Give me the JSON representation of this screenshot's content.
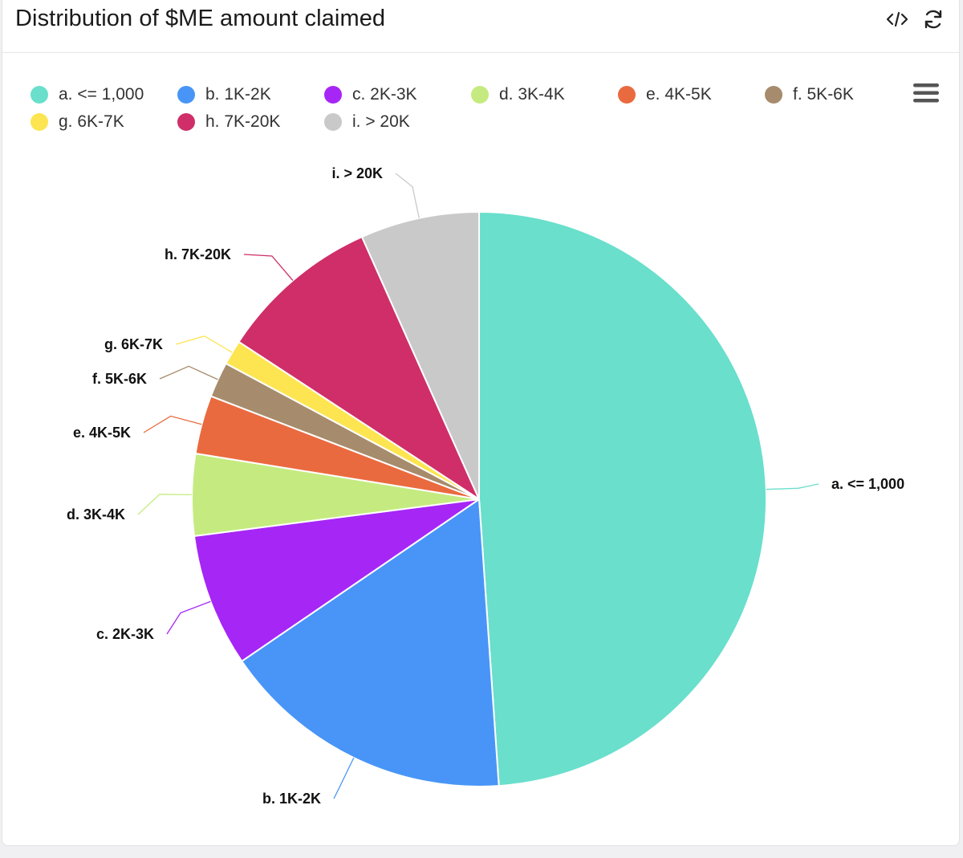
{
  "header": {
    "title": "Distribution of $ME amount claimed",
    "embed_icon": "code-embed-icon",
    "refresh_icon": "refresh-icon",
    "menu_icon": "hamburger-menu-icon"
  },
  "chart_data": {
    "type": "pie",
    "title": "Distribution of $ME amount claimed",
    "legend_placement": "top",
    "slices": [
      {
        "label": "a. <= 1,000",
        "value": 49.0,
        "color": "#69dfcc"
      },
      {
        "label": "b. 1K-2K",
        "value": 16.6,
        "color": "#4895f7"
      },
      {
        "label": "c. 2K-3K",
        "value": 7.5,
        "color": "#a626f6"
      },
      {
        "label": "d. 3K-4K",
        "value": 4.6,
        "color": "#c5eb80"
      },
      {
        "label": "e. 4K-5K",
        "value": 3.3,
        "color": "#ea6a3f"
      },
      {
        "label": "f. 5K-6K",
        "value": 2.0,
        "color": "#a68c6c"
      },
      {
        "label": "g. 6K-7K",
        "value": 1.4,
        "color": "#fde552"
      },
      {
        "label": "h. 7K-20K",
        "value": 9.1,
        "color": "#cf2e69"
      },
      {
        "label": "i. > 20K",
        "value": 6.7,
        "color": "#c9c9c9"
      }
    ]
  }
}
